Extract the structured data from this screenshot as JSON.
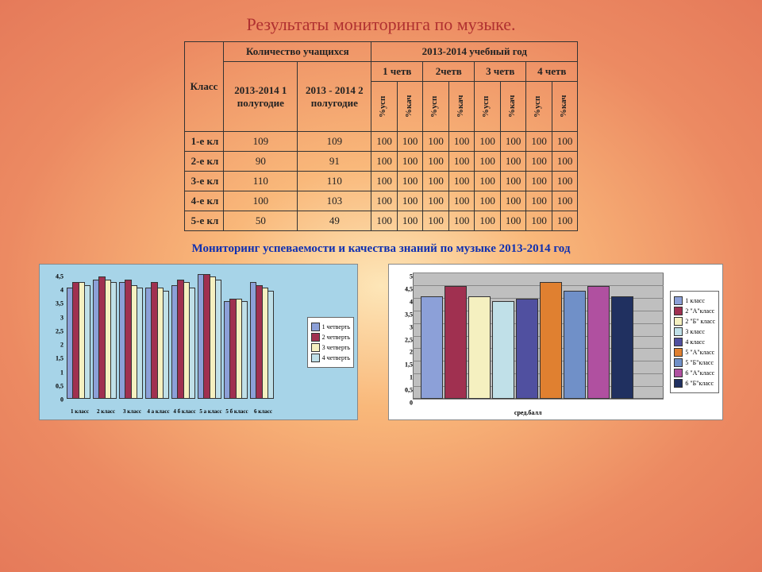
{
  "title": "Результаты мониторинга по музыке.",
  "subtitle": "Мониторинг  успеваемости и качества знаний   по музыке 2013-2014 год",
  "table": {
    "headers": {
      "class": "Класс",
      "count": "Количество учащихся",
      "year": "2013-2014 учебный год",
      "sem1": "2013-2014\n1 полугодие",
      "sem2": "2013 - 2014\n2 полугодие",
      "q1": "1 четв",
      "q2": "2четв",
      "q3": "3 четв",
      "q4": "4 четв",
      "usp": "%усп",
      "kach": "%кач"
    },
    "rows": [
      {
        "label": "1-е кл",
        "c1": "109",
        "c2": "109",
        "v": [
          "100",
          "100",
          "100",
          "100",
          "100",
          "100",
          "100",
          "100"
        ]
      },
      {
        "label": "2-е кл",
        "c1": "90",
        "c2": "91",
        "v": [
          "100",
          "100",
          "100",
          "100",
          "100",
          "100",
          "100",
          "100"
        ]
      },
      {
        "label": "3-е кл",
        "c1": "110",
        "c2": "110",
        "v": [
          "100",
          "100",
          "100",
          "100",
          "100",
          "100",
          "100",
          "100"
        ]
      },
      {
        "label": "4-е кл",
        "c1": "100",
        "c2": "103",
        "v": [
          "100",
          "100",
          "100",
          "100",
          "100",
          "100",
          "100",
          "100"
        ]
      },
      {
        "label": "5-е кл",
        "c1": "50",
        "c2": "49",
        "v": [
          "100",
          "100",
          "100",
          "100",
          "100",
          "100",
          "100",
          "100"
        ]
      }
    ]
  },
  "chart_left": {
    "type": "bar3d_grouped",
    "background": "#a7d4e8",
    "ylim": [
      0,
      4.5
    ],
    "ytick_step": 0.5,
    "yticks": [
      "0",
      "0,5",
      "1",
      "1,5",
      "2",
      "2,5",
      "3",
      "3,5",
      "4",
      "4,5"
    ],
    "categories": [
      "1 класс",
      "2 класс",
      "3 класс",
      "4 а класс",
      "4 б класс",
      "5 а класс",
      "5 б класс",
      "6 класс"
    ],
    "series": [
      {
        "name": "1 четверть",
        "color": "#8ca0d8",
        "values": [
          4.0,
          4.3,
          4.2,
          4.0,
          4.1,
          4.5,
          3.5,
          4.2
        ]
      },
      {
        "name": "2 четверть",
        "color": "#a03050",
        "values": [
          4.2,
          4.4,
          4.3,
          4.2,
          4.3,
          4.5,
          3.6,
          4.1
        ]
      },
      {
        "name": "3 четверть",
        "color": "#f5f0c0",
        "values": [
          4.2,
          4.3,
          4.1,
          4.0,
          4.2,
          4.4,
          3.6,
          4.0
        ]
      },
      {
        "name": "4 четверть",
        "color": "#c0e0e8",
        "values": [
          4.1,
          4.2,
          4.0,
          3.9,
          4.0,
          4.3,
          3.5,
          3.9
        ]
      }
    ]
  },
  "chart_right": {
    "type": "bar",
    "background": "#ffffff",
    "plot_bg": "#bfbfbf",
    "ylim": [
      0,
      5
    ],
    "ytick_step": 0.5,
    "yticks": [
      "0",
      "0,5",
      "1",
      "1,5",
      "2",
      "2,5",
      "3",
      "3,5",
      "4",
      "4,5",
      "5"
    ],
    "xlabel": "сред.балл",
    "series": [
      {
        "name": "1 класс",
        "color": "#8ca0d8",
        "value": 4.0
      },
      {
        "name": "2 \"А\"класс",
        "color": "#a03050",
        "value": 4.4
      },
      {
        "name": "2 \"Б\" класс",
        "color": "#f5f0c0",
        "value": 4.0
      },
      {
        "name": "3 класс",
        "color": "#c0e0e8",
        "value": 3.8
      },
      {
        "name": "4 класс",
        "color": "#5050a0",
        "value": 3.9
      },
      {
        "name": "5 \"А\"класс",
        "color": "#e08030",
        "value": 4.55
      },
      {
        "name": "5 \"Б\"класс",
        "color": "#7090c8",
        "value": 4.2
      },
      {
        "name": "6 \"А\"класс",
        "color": "#b050a0",
        "value": 4.4
      },
      {
        "name": "6 \"Б\"класс",
        "color": "#203060",
        "value": 4.0
      }
    ]
  }
}
